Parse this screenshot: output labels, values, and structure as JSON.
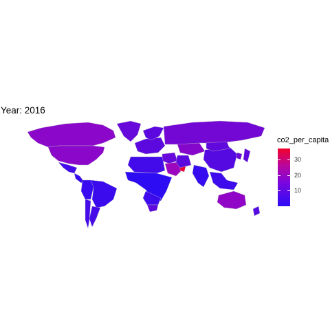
{
  "title": "Year: 2016",
  "legend": {
    "title": "co2_per_capita",
    "ticks": [
      {
        "label": "10",
        "value": 10
      },
      {
        "label": "20",
        "value": 20
      },
      {
        "label": "30",
        "value": 30
      }
    ],
    "range": [
      0.05,
      37
    ],
    "colors": {
      "low": "#2c0cf5",
      "mid": "#9a06c2",
      "high": "#f2022a"
    }
  },
  "regions": [
    {
      "name": "Canada",
      "value": 16
    },
    {
      "name": "United States",
      "value": 16
    },
    {
      "name": "Mexico",
      "value": 4
    },
    {
      "name": "Central America",
      "value": 1.5
    },
    {
      "name": "Greenland",
      "value": 10
    },
    {
      "name": "Brazil",
      "value": 2.5
    },
    {
      "name": "Argentina",
      "value": 4.5
    },
    {
      "name": "Chile",
      "value": 4.5
    },
    {
      "name": "Andean countries",
      "value": 2
    },
    {
      "name": "Europe",
      "value": 8
    },
    {
      "name": "Scandinavia",
      "value": 8
    },
    {
      "name": "Russia",
      "value": 12
    },
    {
      "name": "Kazakhstan",
      "value": 15
    },
    {
      "name": "China",
      "value": 7
    },
    {
      "name": "Mongolia",
      "value": 9
    },
    {
      "name": "Middle East",
      "value": 10
    },
    {
      "name": "Saudi Arabia",
      "value": 19
    },
    {
      "name": "Gulf states",
      "value": 36
    },
    {
      "name": "Iran",
      "value": 8
    },
    {
      "name": "India",
      "value": 1.8
    },
    {
      "name": "Southeast Asia",
      "value": 3
    },
    {
      "name": "Japan",
      "value": 9
    },
    {
      "name": "Korea",
      "value": 11
    },
    {
      "name": "North Africa",
      "value": 4
    },
    {
      "name": "Sub-Saharan Africa",
      "value": 0.3
    },
    {
      "name": "Southern Africa",
      "value": 3
    },
    {
      "name": "South Africa",
      "value": 8.5
    },
    {
      "name": "Australia",
      "value": 17
    },
    {
      "name": "New Zealand",
      "value": 7
    }
  ]
}
